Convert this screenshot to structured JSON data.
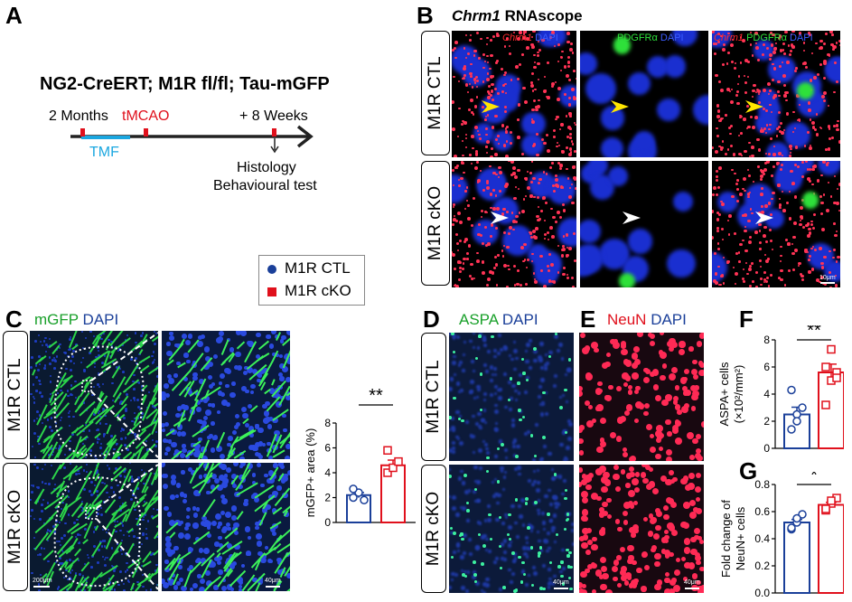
{
  "panel_letters": {
    "a": "A",
    "b": "B",
    "c": "C",
    "d": "D",
    "e": "E",
    "f": "F",
    "g": "G"
  },
  "panel_a": {
    "genotype": "NG2-CreERT; M1R fl/fl; Tau-mGFP",
    "t_2months": "2 Months",
    "t_tmcao": "tMCAO",
    "t_8weeks": "+ 8 Weeks",
    "tmf": "TMF",
    "histology": "Histology",
    "behaviour": "Behavioural test",
    "colors": {
      "red": "#e0101c",
      "blue": "#1ba7e0",
      "axis": "#222222"
    }
  },
  "legend": {
    "ctl": "M1R CTL",
    "cko": "M1R cKO",
    "ctl_color": "#1a3f99",
    "cko_color": "#e0101c"
  },
  "panel_b": {
    "title_gene": "Chrm1",
    "title_rest": " RNAscope",
    "row1": "M1R CTL",
    "row2": "M1R cKO",
    "col1": {
      "gene": "Chrm1",
      "dapi": " DAPI"
    },
    "col2": {
      "pdg": "PDGFRα",
      "dapi": " DAPI"
    },
    "col3": {
      "gene": "Chrm1",
      "pdg": " PDGFRα",
      "dapi": " DAPI"
    },
    "scale": "10μm"
  },
  "panel_c": {
    "ch1": "mGFP",
    "ch2": " DAPI",
    "row1": "M1R CTL",
    "row2": "M1R cKO",
    "scale1": "200μm",
    "scale2": "40μm"
  },
  "panel_d": {
    "ch1": "ASPA",
    "ch2": " DAPI",
    "row1": "M1R CTL",
    "row2": "M1R cKO",
    "scale": "40μm"
  },
  "panel_e": {
    "ch1": "NeuN",
    "ch2": " DAPI",
    "scale": "40μm"
  },
  "chart_data": [
    {
      "type": "bar",
      "panel": "C",
      "ylabel": "mGFP+ area (%)",
      "ylim": [
        0,
        8
      ],
      "yticks": [
        0,
        2,
        4,
        6,
        8
      ],
      "categories": [
        "M1R CTL",
        "M1R cKO"
      ],
      "series": [
        {
          "values": [
            2.2,
            4.6
          ]
        }
      ],
      "points": [
        [
          2.0,
          2.4,
          1.8,
          2.7
        ],
        [
          4.0,
          4.4,
          4.9,
          5.8
        ]
      ],
      "significance": "**"
    },
    {
      "type": "bar",
      "panel": "F",
      "ylabel": "ASPA+ cells",
      "ylabel2": "(×10²/mm²)",
      "ylim": [
        0,
        8
      ],
      "yticks": [
        0,
        2,
        4,
        6,
        8
      ],
      "categories": [
        "M1R CTL",
        "M1R cKO"
      ],
      "series": [
        {
          "values": [
            2.5,
            5.6
          ]
        }
      ],
      "points": [
        [
          1.4,
          2.5,
          3.0,
          4.3,
          2.0
        ],
        [
          3.2,
          5.0,
          5.6,
          6.0,
          7.3,
          5.2
        ]
      ],
      "significance": "**"
    },
    {
      "type": "bar",
      "panel": "G",
      "ylabel": "Fold change of",
      "ylabel2": "NeuN+ cells",
      "ylim": [
        0,
        0.8
      ],
      "yticks": [
        0.0,
        0.2,
        0.4,
        0.6,
        0.8
      ],
      "categories": [
        "M1R CTL",
        "M1R cKO"
      ],
      "series": [
        {
          "values": [
            0.52,
            0.65
          ]
        }
      ],
      "points": [
        [
          0.47,
          0.52,
          0.58,
          0.48,
          0.55
        ],
        [
          0.61,
          0.66,
          0.7,
          0.62,
          0.68
        ]
      ],
      "significance": "*"
    }
  ]
}
